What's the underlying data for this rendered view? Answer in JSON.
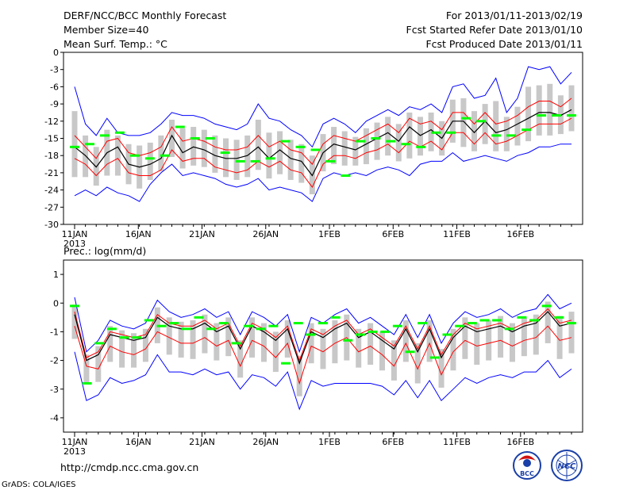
{
  "header": {
    "title": "DERF/NCC/BCC Monthly Forecast",
    "member_size": "Member Size=40",
    "variable": "Mean Surf. Temp.: °C",
    "period": "For 2013/01/11-2013/02/19",
    "started": "Fcst Started Refer Date 2013/01/10",
    "produced": "Fcst Produced Date 2013/01/11"
  },
  "footer": {
    "url": "http://cmdp.ncc.cma.gov.cn",
    "grads": "GrADS: COLA/IGES",
    "logo_bcc": "BCC",
    "logo_ncc": "NCC"
  },
  "colors": {
    "envelope": "#0000ff",
    "spread": "#ff0000",
    "mean": "#000000",
    "box": "#c8c8c8",
    "climatology": "#00ff00"
  },
  "chart_data": [
    {
      "type": "line",
      "title": "Mean Surf. Temp.: °C",
      "x_tick_labels": [
        "11JAN",
        "16JAN",
        "21JAN",
        "26JAN",
        "1FEB",
        "6FEB",
        "11FEB",
        "16FEB"
      ],
      "x_sublabel": "2013",
      "ylim": [
        -30,
        0
      ],
      "y_ticks": [
        "0",
        "-3",
        "-6",
        "-9",
        "-12",
        "-15",
        "-18",
        "-21",
        "-24",
        "-27",
        "-30"
      ],
      "days": 40,
      "series": [
        {
          "name": "ensemble mean",
          "values": [
            -16.5,
            -18.0,
            -20.0,
            -17.5,
            -16.5,
            -19.5,
            -20.0,
            -19.5,
            -18.5,
            -14.5,
            -17.5,
            -16.5,
            -17.0,
            -18.0,
            -18.5,
            -18.5,
            -18.0,
            -16.5,
            -18.5,
            -17.0,
            -18.5,
            -19.0,
            -21.5,
            -17.5,
            -16.0,
            -16.5,
            -17.0,
            -16.0,
            -15.0,
            -14.0,
            -15.5,
            -13.0,
            -14.5,
            -13.5,
            -15.0,
            -12.0,
            -12.0,
            -14.0,
            -12.0,
            -14.0,
            -13.5,
            -12.5,
            -11.5,
            -10.5,
            -10.5,
            -11.0,
            -10.0
          ]
        },
        {
          "name": "upper spread",
          "values": [
            -14.5,
            -16.5,
            -18.5,
            -15.5,
            -15.0,
            -17.5,
            -18.0,
            -17.5,
            -16.5,
            -13.0,
            -15.5,
            -15.0,
            -15.5,
            -16.5,
            -17.0,
            -17.0,
            -16.5,
            -14.5,
            -16.5,
            -15.5,
            -17.0,
            -17.5,
            -19.5,
            -16.0,
            -14.5,
            -15.0,
            -15.5,
            -14.5,
            -13.5,
            -12.5,
            -14.0,
            -11.5,
            -12.5,
            -12.0,
            -13.5,
            -10.5,
            -10.5,
            -12.5,
            -10.5,
            -12.5,
            -12.0,
            -11.0,
            -9.5,
            -8.5,
            -8.5,
            -9.5,
            -8.0
          ]
        },
        {
          "name": "lower spread",
          "values": [
            -18.5,
            -19.5,
            -21.5,
            -19.5,
            -18.5,
            -21.0,
            -21.5,
            -21.5,
            -20.5,
            -17.0,
            -19.0,
            -18.5,
            -18.5,
            -20.0,
            -20.5,
            -21.0,
            -20.5,
            -19.0,
            -20.0,
            -19.0,
            -20.5,
            -21.0,
            -23.5,
            -19.5,
            -18.0,
            -18.0,
            -18.5,
            -17.5,
            -17.0,
            -16.0,
            -17.5,
            -15.5,
            -16.5,
            -15.5,
            -17.0,
            -14.0,
            -14.0,
            -16.0,
            -14.0,
            -16.0,
            -15.5,
            -14.5,
            -13.5,
            -12.5,
            -12.5,
            -12.5,
            -11.5
          ]
        },
        {
          "name": "ensemble max",
          "values": [
            -6.0,
            -12.5,
            -14.5,
            -11.5,
            -14.0,
            -14.5,
            -14.5,
            -14.0,
            -12.5,
            -10.5,
            -11.0,
            -11.0,
            -11.5,
            -12.5,
            -13.0,
            -13.5,
            -12.5,
            -9.0,
            -11.5,
            -12.0,
            -13.5,
            -14.5,
            -16.5,
            -12.5,
            -11.5,
            -12.5,
            -14.0,
            -12.0,
            -11.0,
            -10.0,
            -11.0,
            -9.5,
            -10.0,
            -9.0,
            -10.5,
            -6.0,
            -5.5,
            -8.0,
            -7.5,
            -4.5,
            -10.5,
            -8.0,
            -2.5,
            -3.0,
            -2.5,
            -5.5,
            -3.5
          ]
        },
        {
          "name": "ensemble min",
          "values": [
            -25.0,
            -24.0,
            -25.0,
            -23.5,
            -24.5,
            -25.0,
            -26.0,
            -23.0,
            -21.0,
            -19.5,
            -21.5,
            -21.0,
            -21.5,
            -22.0,
            -23.0,
            -23.5,
            -23.0,
            -22.0,
            -24.0,
            -23.5,
            -24.0,
            -24.5,
            -26.0,
            -22.0,
            -21.0,
            -21.5,
            -21.0,
            -21.5,
            -20.5,
            -20.0,
            -20.5,
            -21.5,
            -19.5,
            -19.0,
            -19.0,
            -17.5,
            -19.0,
            -18.5,
            -18.0,
            -18.5,
            -19.0,
            -18.0,
            -17.5,
            -16.5,
            -16.5,
            -16.0,
            -16.0
          ]
        },
        {
          "name": "climatology",
          "values": [
            -16.5,
            -16.0,
            -14.5,
            -14.0,
            -18.0,
            -18.5,
            -18.0,
            -13.0,
            -15.0,
            -15.0,
            -17.5,
            -19.0,
            -19.0,
            -18.5,
            -15.5,
            -16.5,
            -17.0,
            -19.0,
            -21.5,
            -15.5,
            -15.0,
            -15.5,
            -16.0,
            -16.5,
            -14.0,
            -14.0,
            -11.5,
            -12.0,
            -14.5,
            -14.5,
            -13.5,
            -11.0,
            -11.0,
            -11.0
          ]
        }
      ]
    },
    {
      "type": "line",
      "title": "Prec.: log(mm/d)",
      "x_tick_labels": [
        "11JAN",
        "16JAN",
        "21JAN",
        "26JAN",
        "1FEB",
        "6FEB",
        "11FEB",
        "16FEB"
      ],
      "x_sublabel": "2013",
      "ylim": [
        -4.5,
        1.5
      ],
      "y_ticks": [
        "1",
        "0",
        "-1",
        "-2",
        "-3",
        "-4"
      ],
      "days": 40,
      "series": [
        {
          "name": "ensemble mean",
          "values": [
            -0.4,
            -2.0,
            -1.8,
            -1.1,
            -1.2,
            -1.3,
            -1.2,
            -0.5,
            -0.8,
            -0.9,
            -0.9,
            -0.7,
            -1.0,
            -0.8,
            -1.6,
            -0.8,
            -1.0,
            -1.3,
            -0.9,
            -2.1,
            -1.0,
            -1.2,
            -0.9,
            -0.7,
            -1.2,
            -1.0,
            -1.3,
            -1.6,
            -0.9,
            -1.7,
            -0.9,
            -1.9,
            -1.2,
            -0.8,
            -1.0,
            -0.9,
            -0.8,
            -1.0,
            -0.8,
            -0.7,
            -0.3,
            -0.8,
            -0.7
          ]
        },
        {
          "name": "upper spread",
          "values": [
            -0.3,
            -1.9,
            -1.7,
            -1.0,
            -1.1,
            -1.2,
            -1.1,
            -0.4,
            -0.7,
            -0.8,
            -0.8,
            -0.6,
            -0.9,
            -0.7,
            -1.5,
            -0.7,
            -0.9,
            -1.2,
            -0.8,
            -2.0,
            -0.9,
            -1.1,
            -0.8,
            -0.6,
            -1.1,
            -0.9,
            -1.2,
            -1.5,
            -0.8,
            -1.6,
            -0.8,
            -1.8,
            -1.1,
            -0.7,
            -0.9,
            -0.8,
            -0.7,
            -0.9,
            -0.7,
            -0.6,
            -0.2,
            -0.7,
            -0.6
          ]
        },
        {
          "name": "lower spread",
          "values": [
            -0.8,
            -2.2,
            -2.3,
            -1.5,
            -1.7,
            -1.8,
            -1.6,
            -1.0,
            -1.2,
            -1.4,
            -1.4,
            -1.2,
            -1.5,
            -1.3,
            -2.2,
            -1.3,
            -1.5,
            -1.9,
            -1.4,
            -2.8,
            -1.5,
            -1.7,
            -1.4,
            -1.2,
            -1.7,
            -1.5,
            -1.8,
            -2.2,
            -1.4,
            -2.3,
            -1.4,
            -2.5,
            -1.7,
            -1.3,
            -1.5,
            -1.4,
            -1.3,
            -1.5,
            -1.3,
            -1.2,
            -0.8,
            -1.3,
            -1.2
          ]
        },
        {
          "name": "ensemble max",
          "values": [
            0.2,
            -1.7,
            -1.3,
            -0.6,
            -0.8,
            -0.9,
            -0.7,
            0.1,
            -0.3,
            -0.5,
            -0.4,
            -0.2,
            -0.5,
            -0.3,
            -1.1,
            -0.3,
            -0.5,
            -0.8,
            -0.4,
            -1.7,
            -0.5,
            -0.7,
            -0.4,
            -0.2,
            -0.7,
            -0.5,
            -0.8,
            -1.1,
            -0.4,
            -1.2,
            -0.4,
            -1.4,
            -0.7,
            -0.3,
            -0.5,
            -0.4,
            -0.2,
            -0.5,
            -0.3,
            -0.2,
            0.3,
            -0.2,
            0.0
          ]
        },
        {
          "name": "ensemble min",
          "values": [
            -1.7,
            -3.4,
            -3.2,
            -2.6,
            -2.8,
            -2.7,
            -2.5,
            -1.8,
            -2.4,
            -2.4,
            -2.5,
            -2.3,
            -2.5,
            -2.4,
            -3.0,
            -2.5,
            -2.6,
            -2.9,
            -2.4,
            -3.7,
            -2.7,
            -2.9,
            -2.8,
            -2.8,
            -2.8,
            -2.8,
            -2.9,
            -3.2,
            -2.7,
            -3.3,
            -2.7,
            -3.4,
            -3.0,
            -2.6,
            -2.8,
            -2.6,
            -2.5,
            -2.6,
            -2.4,
            -2.4,
            -2.0,
            -2.6,
            -2.3
          ]
        },
        {
          "name": "climatology",
          "values": [
            -0.1,
            -2.8,
            -1.4,
            -0.9,
            -1.2,
            -1.2,
            -0.6,
            -0.8,
            -0.7,
            -0.9,
            -0.5,
            -0.9,
            -0.7,
            -1.4,
            -0.8,
            -0.9,
            -0.8,
            -2.1,
            -0.7,
            -1.1,
            -0.7,
            -0.5,
            -1.3,
            -1.1,
            -1.0,
            -1.0,
            -0.8,
            -1.7,
            -0.7,
            -1.9,
            -1.1,
            -0.8,
            -0.7,
            -0.6,
            -0.6,
            -0.9,
            -0.5,
            -0.6,
            -0.1,
            -0.5,
            -0.7
          ]
        }
      ]
    }
  ]
}
